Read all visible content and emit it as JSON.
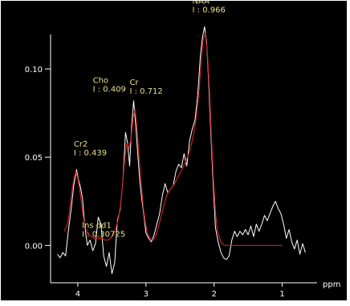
{
  "colors": {
    "background": "#000000",
    "axis": "#ffffff",
    "measured_spectrum": "#ffffff",
    "fit_curve": "#cc1f1f",
    "annotation_text": "#e8e08a"
  },
  "chart_data": {
    "type": "line",
    "title": "",
    "xlabel": "ppm",
    "ylabel": "",
    "x_axis_reversed": true,
    "xlim": [
      4.4,
      0.5
    ],
    "ylim": [
      -0.018,
      0.125
    ],
    "x_ticks": [
      {
        "value": 4,
        "label": "4"
      },
      {
        "value": 3,
        "label": "3"
      },
      {
        "value": 2,
        "label": "2"
      },
      {
        "value": 1,
        "label": "1"
      }
    ],
    "y_ticks": [
      {
        "value": 0.0,
        "label": "0.00"
      },
      {
        "value": 0.05,
        "label": "0.05"
      },
      {
        "value": 0.1,
        "label": "0.10"
      }
    ],
    "grid": false,
    "annotations": [
      {
        "name": "Cr2",
        "integral": "I : 0.439",
        "x": 4.06,
        "y": 0.056
      },
      {
        "name": "Cho",
        "integral": "I : 0.409",
        "x": 3.78,
        "y": 0.092
      },
      {
        "name": "Cr",
        "integral": "I : 0.712",
        "x": 3.24,
        "y": 0.091
      },
      {
        "name": "Ins dd1",
        "integral": "I : 0.30725",
        "x": 3.94,
        "y": 0.01
      },
      {
        "name": "NAA",
        "integral": "I : 0.966",
        "x": 2.32,
        "y": 0.137
      }
    ],
    "series": [
      {
        "x": [
          4.3,
          4.26,
          4.22,
          4.18,
          4.14,
          4.1,
          4.06,
          4.02,
          3.99,
          3.96,
          3.93,
          3.9,
          3.86,
          3.82,
          3.78,
          3.74,
          3.7,
          3.66,
          3.62,
          3.58,
          3.54,
          3.5,
          3.46,
          3.42,
          3.38,
          3.34,
          3.3,
          3.27,
          3.24,
          3.21,
          3.18,
          3.15,
          3.12,
          3.09,
          3.06,
          3.03,
          3.0,
          2.96,
          2.92,
          2.88,
          2.84,
          2.8,
          2.76,
          2.72,
          2.68,
          2.64,
          2.6,
          2.56,
          2.52,
          2.48,
          2.44,
          2.4,
          2.36,
          2.32,
          2.28,
          2.24,
          2.2,
          2.17,
          2.14,
          2.11,
          2.08,
          2.05,
          2.02,
          1.98,
          1.94,
          1.9,
          1.86,
          1.82,
          1.78,
          1.74,
          1.7,
          1.66,
          1.62,
          1.58,
          1.54,
          1.5,
          1.46,
          1.42,
          1.38,
          1.34,
          1.3,
          1.26,
          1.22,
          1.18,
          1.14,
          1.1,
          1.06,
          1.02,
          0.98,
          0.94,
          0.9,
          0.86,
          0.82,
          0.78,
          0.74,
          0.7,
          0.66
        ],
        "values": [
          -0.005,
          -0.007,
          -0.004,
          -0.006,
          0.008,
          0.02,
          0.034,
          0.043,
          0.037,
          0.033,
          0.026,
          0.012,
          0.0,
          0.003,
          -0.003,
          0.001,
          0.016,
          0.012,
          -0.006,
          -0.012,
          -0.004,
          -0.016,
          -0.01,
          0.014,
          0.02,
          0.036,
          0.064,
          0.058,
          0.045,
          0.068,
          0.082,
          0.068,
          0.052,
          0.036,
          0.026,
          0.017,
          0.007,
          0.004,
          0.002,
          0.006,
          0.012,
          0.018,
          0.028,
          0.035,
          0.03,
          0.032,
          0.034,
          0.042,
          0.046,
          0.044,
          0.052,
          0.045,
          0.059,
          0.066,
          0.071,
          0.085,
          0.108,
          0.118,
          0.124,
          0.115,
          0.093,
          0.066,
          0.04,
          0.01,
          0.002,
          -0.004,
          -0.007,
          -0.008,
          -0.006,
          0.003,
          0.008,
          0.005,
          0.008,
          0.006,
          0.009,
          0.006,
          0.011,
          0.005,
          0.012,
          0.008,
          0.012,
          0.017,
          0.014,
          0.018,
          0.022,
          0.025,
          0.021,
          0.018,
          0.012,
          0.004,
          0.009,
          0.002,
          -0.002,
          0.003,
          -0.005,
          0.001,
          -0.004
        ]
      },
      {
        "x": [
          4.2,
          4.15,
          4.12,
          4.09,
          4.06,
          4.03,
          4.0,
          3.97,
          3.94,
          3.91,
          3.88,
          3.84,
          3.8,
          3.76,
          3.72,
          3.68,
          3.64,
          3.6,
          3.56,
          3.52,
          3.48,
          3.44,
          3.4,
          3.37,
          3.34,
          3.31,
          3.28,
          3.25,
          3.22,
          3.19,
          3.16,
          3.13,
          3.1,
          3.07,
          3.04,
          3.01,
          2.98,
          2.94,
          2.9,
          2.86,
          2.82,
          2.78,
          2.74,
          2.7,
          2.66,
          2.62,
          2.58,
          2.54,
          2.5,
          2.46,
          2.42,
          2.38,
          2.34,
          2.3,
          2.26,
          2.22,
          2.19,
          2.16,
          2.13,
          2.1,
          2.07,
          2.04,
          2.01,
          1.98,
          1.95,
          1.9,
          1.85,
          1.8,
          1.7,
          1.6,
          1.5,
          1.4,
          1.3,
          1.2,
          1.1,
          1.0
        ],
        "values": [
          0.008,
          0.012,
          0.02,
          0.03,
          0.037,
          0.042,
          0.038,
          0.031,
          0.022,
          0.014,
          0.009,
          0.006,
          0.005,
          0.004,
          0.004,
          0.004,
          0.004,
          0.003,
          0.003,
          0.004,
          0.006,
          0.01,
          0.016,
          0.024,
          0.036,
          0.05,
          0.058,
          0.055,
          0.06,
          0.072,
          0.077,
          0.066,
          0.05,
          0.035,
          0.022,
          0.013,
          0.007,
          0.004,
          0.003,
          0.005,
          0.01,
          0.016,
          0.022,
          0.028,
          0.031,
          0.033,
          0.035,
          0.038,
          0.041,
          0.044,
          0.047,
          0.051,
          0.056,
          0.063,
          0.073,
          0.088,
          0.104,
          0.117,
          0.12,
          0.11,
          0.089,
          0.062,
          0.038,
          0.019,
          0.008,
          0.002,
          0.0,
          0.0,
          0.0,
          0.0,
          0.0,
          0.0,
          0.0,
          0.0,
          0.0,
          0.0
        ]
      }
    ]
  }
}
